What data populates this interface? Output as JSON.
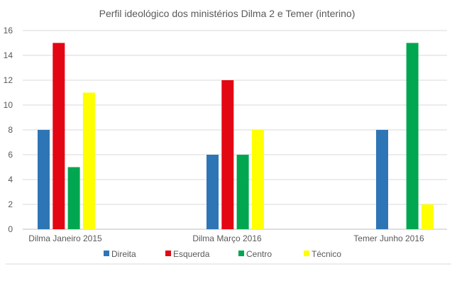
{
  "chart_data": {
    "type": "bar",
    "title": "Perfil ideológico  dos ministérios  Dilma 2 e Temer (interino)",
    "xlabel": "",
    "ylabel": "",
    "ylim": [
      0,
      16
    ],
    "yticks": [
      "0",
      "2",
      "4",
      "6",
      "8",
      "10",
      "12",
      "14",
      "16"
    ],
    "grid": true,
    "legend_position": "bottom",
    "categories": [
      "Dilma Janeiro 2015",
      "Dilma Março 2016",
      "Temer Junho 2016"
    ],
    "series": [
      {
        "name": "Direita",
        "color": "#2E75B6",
        "values": [
          8,
          6,
          8
        ]
      },
      {
        "name": "Esquerda",
        "color": "#E30613",
        "values": [
          15,
          12,
          0
        ]
      },
      {
        "name": "Centro",
        "color": "#00A650",
        "values": [
          5,
          6,
          15
        ]
      },
      {
        "name": "Técnico",
        "color": "#FFFF00",
        "values": [
          11,
          8,
          2
        ]
      }
    ]
  }
}
